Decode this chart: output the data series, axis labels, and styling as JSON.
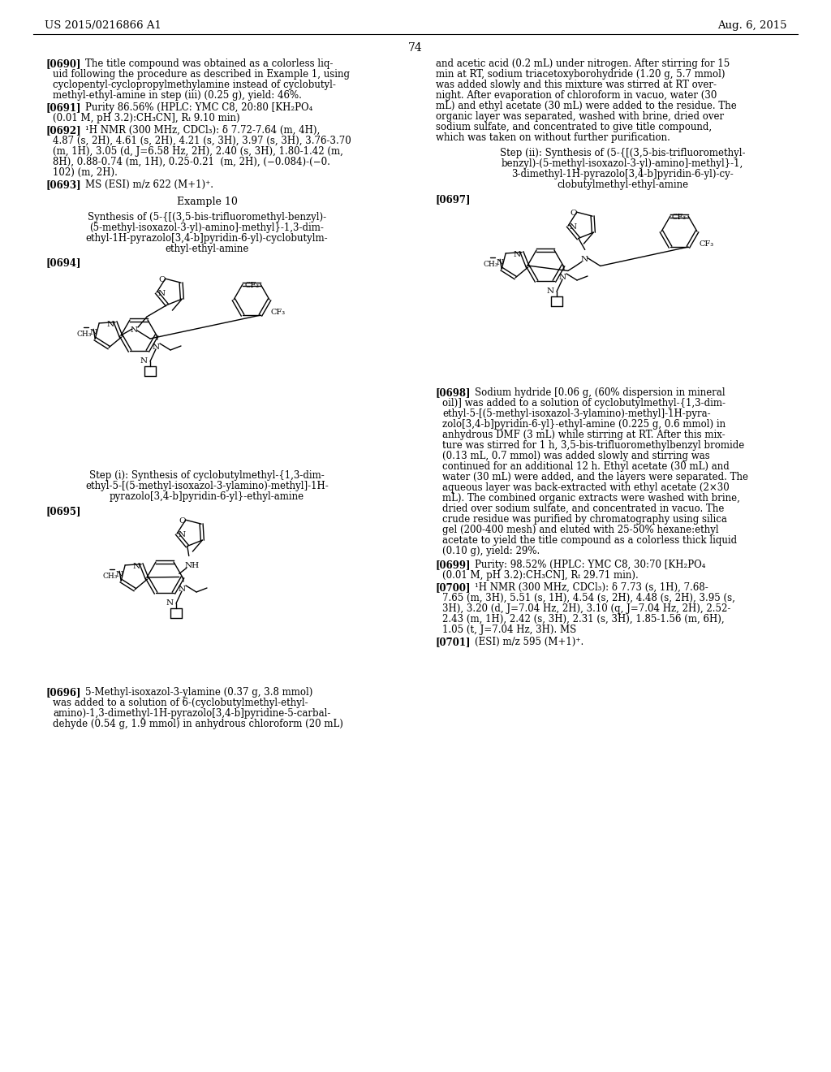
{
  "background_color": "#ffffff",
  "header_left": "US 2015/0216866 A1",
  "header_right": "Aug. 6, 2015",
  "page_number": "74",
  "sup_plus": "⁺",
  "deg1H": "¹H",
  "delta": "δ",
  "cdcl3": "CDCl₃",
  "kh2po4": "KH₂PO₄",
  "ch3cn": "CH₃CN",
  "ch3": "CH₃",
  "minus": "−",
  "times": "×",
  "Rt": "Rₜ"
}
